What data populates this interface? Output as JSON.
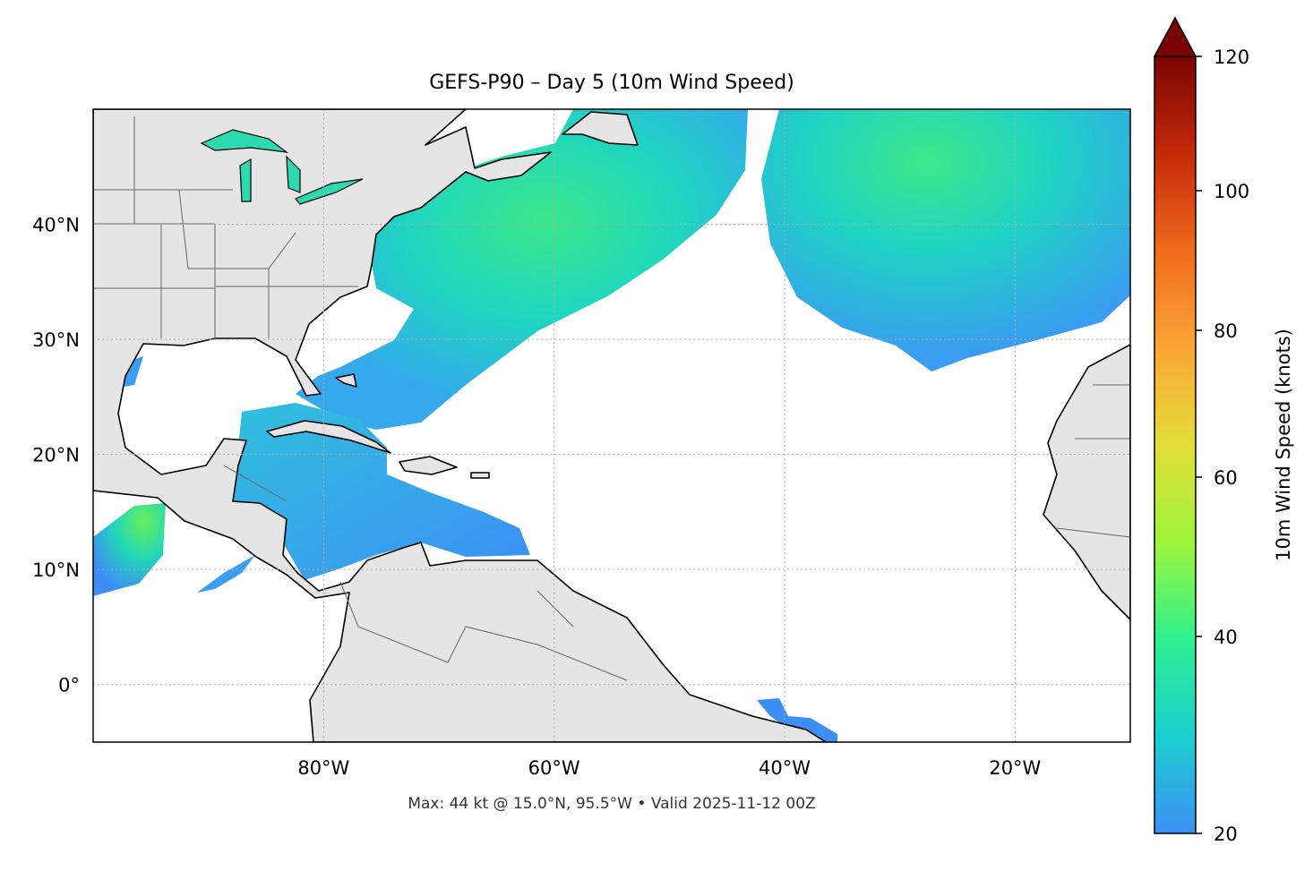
{
  "chart_data": {
    "type": "map",
    "title": "GEFS-P90 – Day 5 (10m Wind Speed)",
    "footer": "Max: 44 kt @ 15.0°N, 95.5°W • Valid 2025-11-12 00Z",
    "lon_range": [
      -100,
      -10
    ],
    "lat_range": [
      -5,
      50
    ],
    "grid": true,
    "xticks": [
      {
        "value": -80,
        "label": "80°W"
      },
      {
        "value": -60,
        "label": "60°W"
      },
      {
        "value": -40,
        "label": "40°W"
      },
      {
        "value": -20,
        "label": "20°W"
      }
    ],
    "yticks": [
      {
        "value": 40,
        "label": "40°N"
      },
      {
        "value": 30,
        "label": "30°N"
      },
      {
        "value": 20,
        "label": "20°N"
      },
      {
        "value": 10,
        "label": "10°N"
      },
      {
        "value": 0,
        "label": "0°"
      }
    ],
    "colorbar": {
      "label": "10m Wind Speed (knots)",
      "range": [
        20,
        120
      ],
      "extend": "max",
      "ticks": [
        {
          "value": 20,
          "label": "20"
        },
        {
          "value": 40,
          "label": "40"
        },
        {
          "value": 60,
          "label": "60"
        },
        {
          "value": 80,
          "label": "80"
        },
        {
          "value": 100,
          "label": "100"
        },
        {
          "value": 120,
          "label": "120"
        }
      ],
      "colors": [
        "#3d8ff5",
        "#1bcfd0",
        "#2ef08f",
        "#9ef53a",
        "#e3dd38",
        "#faa636",
        "#f06a1c",
        "#c42a08",
        "#7a0403"
      ]
    },
    "max_value": 44,
    "max_location": [
      15.0,
      -95.5
    ],
    "land_color": "#e5e5e5"
  }
}
